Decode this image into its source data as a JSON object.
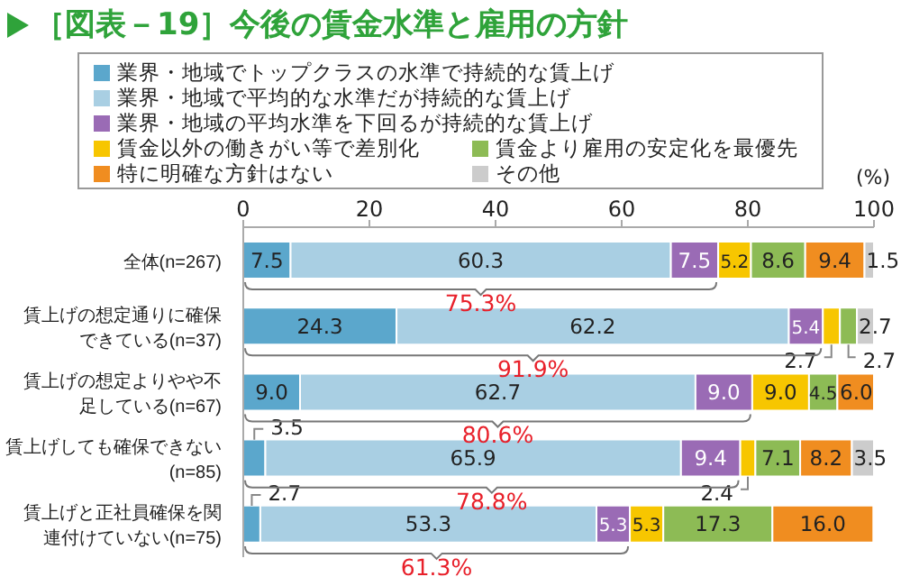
{
  "chart_data": {
    "type": "bar",
    "orientation": "horizontal",
    "stacked": true,
    "title": "［図表－19］今後の賃金水準と雇用の方針",
    "xlabel": "(%)",
    "categories": [
      "全体(n=267)",
      "賃上げの想定通りに確保できている(n=37)",
      "賃上げの想定よりやや不足している(n=67)",
      "賃上げしても確保できない(n=85)",
      "賃上げと正社員確保を関連付けていない(n=75)"
    ],
    "series": [
      {
        "name": "業界・地域でトップクラスの水準で持続的な賃上げ",
        "color": "#5ba7cc",
        "values": [
          7.5,
          24.3,
          9.0,
          3.5,
          2.7
        ],
        "value_labels": [
          "7.5",
          "24.3",
          "9.0",
          "3.5",
          "2.7"
        ]
      },
      {
        "name": "業界・地域で平均的な水準だが持続的な賃上げ",
        "color": "#a9cfe3",
        "values": [
          60.3,
          62.2,
          62.7,
          65.9,
          53.3
        ],
        "value_labels": [
          "60.3",
          "62.2",
          "62.7",
          "65.9",
          "53.3"
        ]
      },
      {
        "name": "業界・地域の平均水準を下回るが持続的な賃上げ",
        "color": "#9a6bb5",
        "values": [
          7.5,
          5.4,
          9.0,
          9.4,
          5.3
        ],
        "value_labels": [
          "7.5",
          "5.4",
          "9.0",
          "9.4",
          "5.3"
        ]
      },
      {
        "name": "賃金以外の働きがい等で差別化",
        "color": "#f7c600",
        "values": [
          5.2,
          2.7,
          9.0,
          2.4,
          5.3
        ],
        "value_labels": [
          "5.2",
          "2.7",
          "9.0",
          "2.4",
          "5.3"
        ]
      },
      {
        "name": "賃金より雇用の安定化を最優先",
        "color": "#8dbb55",
        "values": [
          8.6,
          2.7,
          4.5,
          7.1,
          17.3
        ],
        "value_labels": [
          "8.6",
          "2.7",
          "4.5",
          "7.1",
          "17.3"
        ]
      },
      {
        "name": "特に明確な方針はない",
        "color": "#f08d20",
        "values": [
          9.4,
          null,
          6.0,
          8.2,
          16.0
        ],
        "value_labels": [
          "9.4",
          null,
          "6.0",
          "8.2",
          "16.0"
        ]
      },
      {
        "name": "その他",
        "color": "#cccccc",
        "values": [
          1.5,
          2.7,
          null,
          3.5,
          null
        ],
        "value_labels": [
          "1.5",
          "2.7",
          null,
          "3.5",
          null
        ]
      }
    ],
    "xlim": [
      0,
      100
    ],
    "xticks": [
      0,
      20,
      40,
      60,
      80,
      100
    ],
    "legend": "top",
    "grid": false,
    "annotations": [
      "75.3%",
      "91.9%",
      "80.6%",
      "78.8%",
      "61.3%"
    ]
  }
}
